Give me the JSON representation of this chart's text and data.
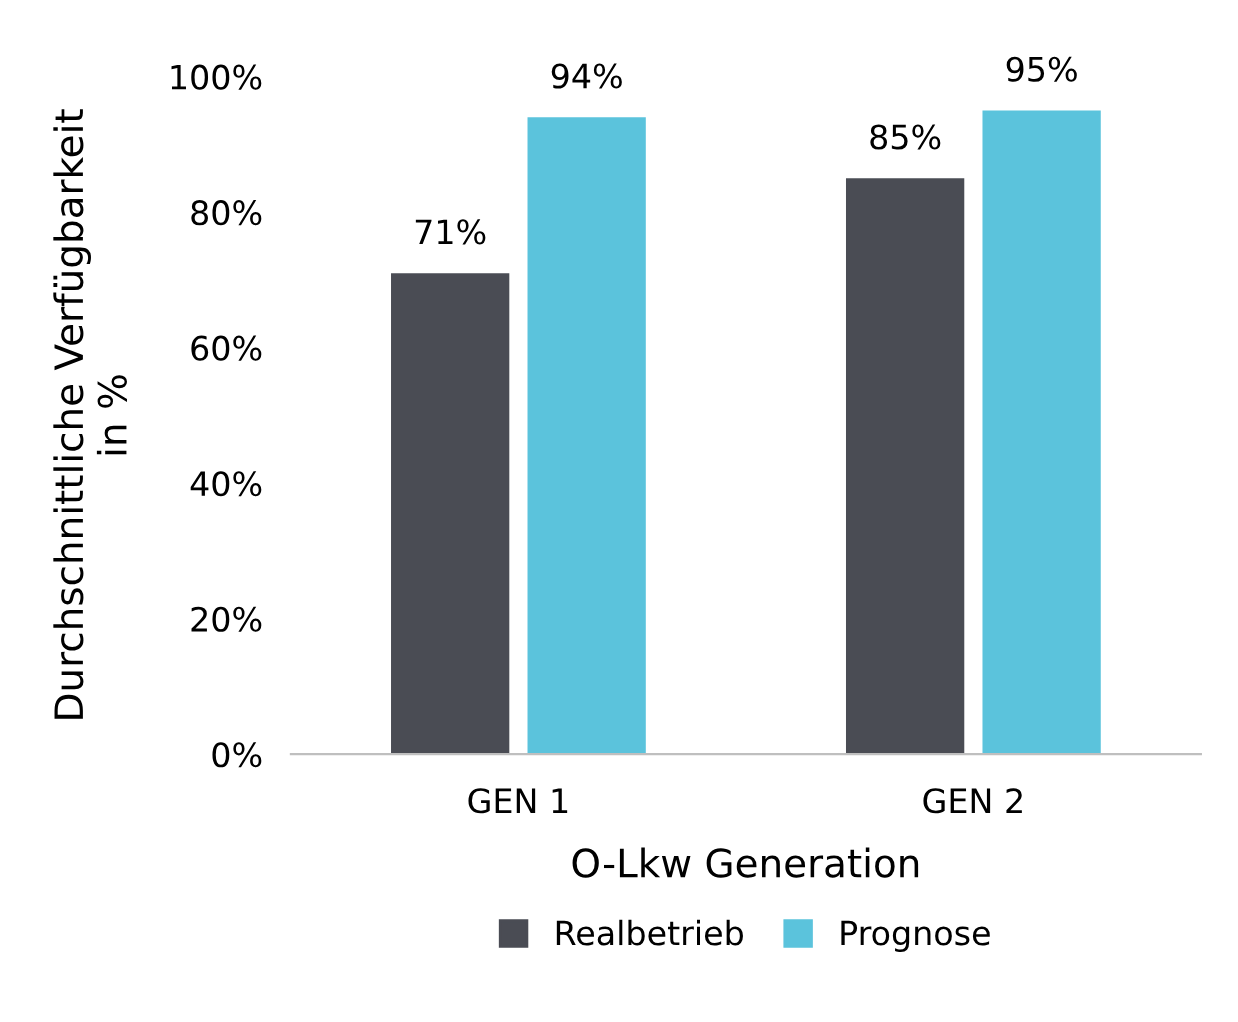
{
  "chart_data": {
    "type": "bar",
    "categories": [
      "GEN 1",
      "GEN 2"
    ],
    "series": [
      {
        "name": "Realbetrieb",
        "color": "#4a4c54",
        "values": [
          71,
          85
        ],
        "value_labels": [
          "71%",
          "85%"
        ]
      },
      {
        "name": "Prognose",
        "color": "#5bc3dc",
        "values": [
          94,
          95
        ],
        "value_labels": [
          "94%",
          "95%"
        ]
      }
    ],
    "xlabel": "O-Lkw Generation",
    "ylabel": "Durchschnittliche Verfügbarkeit\nin %",
    "ylim": [
      0,
      100
    ],
    "yticks": [
      {
        "value": 0,
        "label": "0%"
      },
      {
        "value": 20,
        "label": "20%"
      },
      {
        "value": 40,
        "label": "40%"
      },
      {
        "value": 60,
        "label": "60%"
      },
      {
        "value": 80,
        "label": "80%"
      },
      {
        "value": 100,
        "label": "100%"
      }
    ],
    "grid": false,
    "legend": "bottom"
  }
}
